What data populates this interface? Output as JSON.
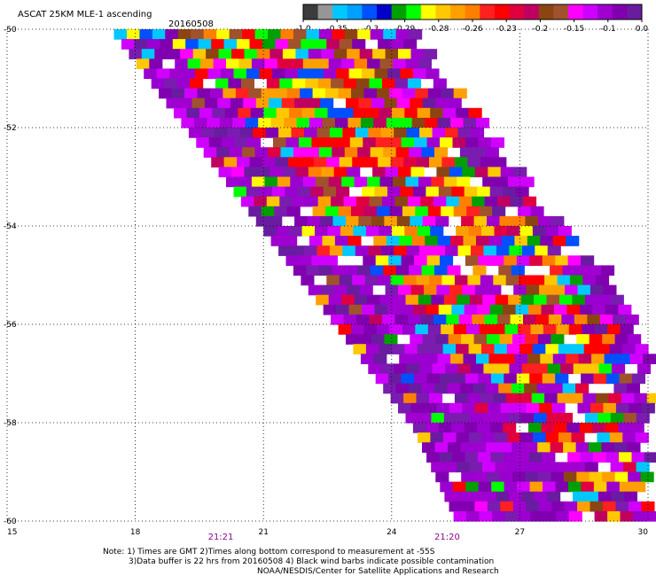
{
  "chart_data": {
    "type": "heatmap",
    "title": "ASCAT 25KM MLE-1 ascending",
    "date": "20160508",
    "x_ticks": [
      "15",
      "18",
      "21",
      "24",
      "27",
      "30"
    ],
    "y_ticks": [
      "-50",
      "-52",
      "-54",
      "-56",
      "-58",
      "-60"
    ],
    "xlim": [
      15,
      30
    ],
    "ylim": [
      -60,
      -50
    ],
    "grid": "dotted",
    "time_labels": [
      {
        "label": "21:21",
        "lon": 20.0
      },
      {
        "label": "21:20",
        "lon": 25.3
      }
    ],
    "colorbar": {
      "labels": [
        "-1.0",
        "-0.35",
        "-0.3",
        "-0.29",
        "-0.28",
        "-0.26",
        "-0.23",
        "-0.2",
        "-0.15",
        "-0.1",
        "0.0"
      ],
      "colors": [
        "#3c3c3c",
        "#969696",
        "#00c8ff",
        "#00a0ff",
        "#0050ff",
        "#0000c8",
        "#00a000",
        "#00ff00",
        "#ffff00",
        "#ffc800",
        "#ffa000",
        "#ff8000",
        "#ff2020",
        "#ff0000",
        "#e00040",
        "#c00060",
        "#8b4513",
        "#a0522d",
        "#ff00ff",
        "#d000ff",
        "#a000d0",
        "#8000b0",
        "#6a1ca0"
      ]
    },
    "swath": {
      "west_edge": [
        [
          17.5,
          -50.0
        ],
        [
          21.0,
          -54.0
        ],
        [
          24.5,
          -58.0
        ],
        [
          25.5,
          -59.9
        ]
      ]
    },
    "notes": [
      "Note: 1) Times are GMT 2)Times along bottom correspond to measurement at -55S",
      "3)Data buffer is 22 hrs from 20160508 4) Black wind barbs indicate possible contamination",
      "NOAA/NESDIS/Center for Satellite Applications and Research"
    ]
  }
}
